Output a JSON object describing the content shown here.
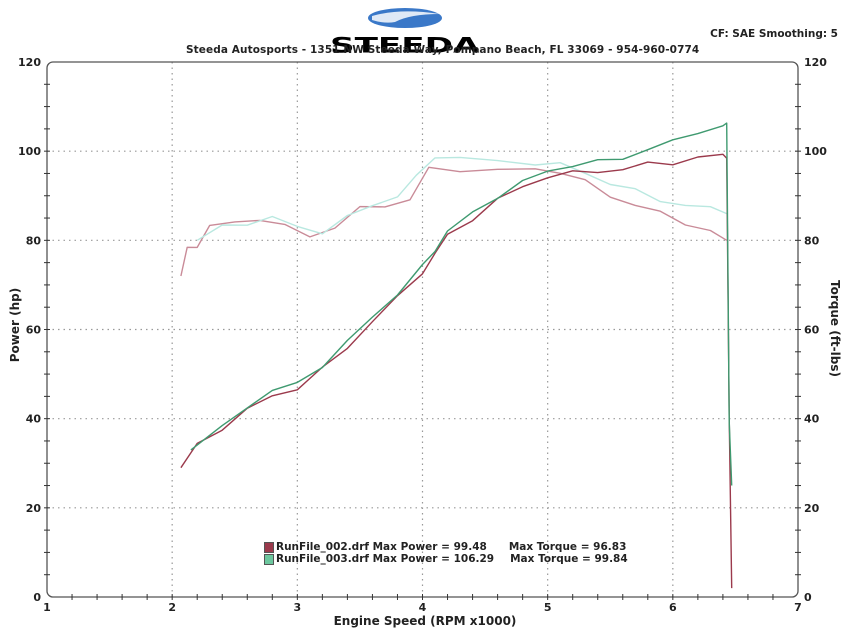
{
  "header": {
    "logo_text": "STEEDA",
    "subtitle": "Steeda Autosports - 1351 NW Steeda Way, Pompano Beach, FL 33069 - 954-960-0774",
    "correction_info": "CF: SAE  Smoothing: 5"
  },
  "axes": {
    "x_label": "Engine Speed (RPM x1000)",
    "y_left_label": "Power (hp)",
    "y_right_label": "Torque (ft-lbs)",
    "x_ticks": [
      "1",
      "2",
      "3",
      "4",
      "5",
      "6",
      "7"
    ],
    "y_ticks": [
      "0",
      "20",
      "40",
      "60",
      "80",
      "100",
      "120"
    ]
  },
  "legend": [
    {
      "file": "RunFile_002.drf",
      "max_power_label": "Max Power = 99.48",
      "max_torque_label": "Max Torque = 96.83",
      "color": "#9b3a4c"
    },
    {
      "file": "RunFile_003.drf",
      "max_power_label": "Max Power = 106.29",
      "max_torque_label": "Max Torque = 99.84",
      "color": "#3f9a70"
    }
  ],
  "colors": {
    "run002_power": "#9b3a4c",
    "run002_torque": "#c98b98",
    "run003_power": "#3f9a70",
    "run003_torque": "#b9e8e0",
    "grid": "#999999",
    "frame": "#555555",
    "logo_blue": "#3a78c8"
  },
  "chart_data": {
    "type": "line",
    "title": "Steeda Autosports Dyno Chart",
    "subtitle": "CF: SAE  Smoothing: 5",
    "xlabel": "Engine Speed (RPM x1000)",
    "ylabel": "Power (hp)",
    "y2label": "Torque (ft-lbs)",
    "xlim": [
      1,
      7
    ],
    "ylim": [
      0,
      120
    ],
    "y2lim": [
      0,
      120
    ],
    "grid": true,
    "legend_position": "bottom-center inside plot",
    "series": [
      {
        "name": "RunFile_002.drf Power",
        "axis": "left",
        "max": 99.48,
        "x": [
          2.07,
          2.2,
          2.4,
          2.6,
          2.8,
          3.0,
          3.2,
          3.4,
          3.6,
          3.8,
          4.0,
          4.1,
          4.2,
          4.4,
          4.6,
          4.8,
          5.0,
          5.2,
          5.4,
          5.6,
          5.8,
          6.0,
          6.2,
          6.4,
          6.43,
          6.45,
          6.47
        ],
        "y": [
          29,
          34,
          38,
          42,
          45,
          47,
          51,
          56,
          62,
          67,
          73,
          77,
          81,
          85,
          89,
          92,
          94.5,
          95,
          95.5,
          96,
          97,
          97.5,
          98.5,
          99,
          99,
          40,
          2
        ]
      },
      {
        "name": "RunFile_003.drf Power",
        "axis": "left",
        "max": 106.29,
        "x": [
          2.15,
          2.4,
          2.6,
          2.8,
          3.0,
          3.2,
          3.4,
          3.6,
          3.8,
          4.0,
          4.1,
          4.2,
          4.4,
          4.6,
          4.8,
          5.0,
          5.2,
          5.4,
          5.6,
          5.8,
          6.0,
          6.2,
          6.4,
          6.43,
          6.45,
          6.47
        ],
        "y": [
          33,
          38,
          43,
          46,
          48,
          52,
          57,
          63,
          68,
          74,
          78,
          82,
          86,
          90,
          93,
          95.5,
          97,
          97.5,
          98.5,
          100.5,
          102,
          104.5,
          105.5,
          106,
          40,
          25
        ]
      },
      {
        "name": "RunFile_002.drf Torque",
        "axis": "right",
        "max": 96.83,
        "x": [
          2.07,
          2.12,
          2.2,
          2.3,
          2.5,
          2.7,
          2.9,
          3.1,
          3.3,
          3.5,
          3.7,
          3.9,
          4.05,
          4.3,
          4.6,
          4.9,
          5.1,
          5.3,
          5.5,
          5.7,
          5.9,
          6.1,
          6.3,
          6.43
        ],
        "y": [
          72,
          78,
          79,
          83,
          84,
          85,
          83,
          81,
          83,
          87,
          88,
          89,
          96,
          96,
          95.5,
          96,
          95.5,
          93,
          90,
          88,
          86,
          84,
          82,
          80
        ]
      },
      {
        "name": "RunFile_003.drf Torque",
        "axis": "right",
        "max": 99.84,
        "x": [
          2.2,
          2.4,
          2.6,
          2.8,
          3.0,
          3.2,
          3.4,
          3.6,
          3.8,
          3.95,
          4.1,
          4.3,
          4.6,
          4.9,
          5.1,
          5.3,
          5.5,
          5.7,
          5.9,
          6.1,
          6.3,
          6.43
        ],
        "y": [
          80,
          83,
          84,
          85,
          83,
          82,
          85,
          88,
          90,
          94,
          99,
          98.5,
          97.5,
          97.5,
          97,
          95,
          93,
          91,
          89,
          88,
          87,
          86
        ]
      }
    ]
  }
}
